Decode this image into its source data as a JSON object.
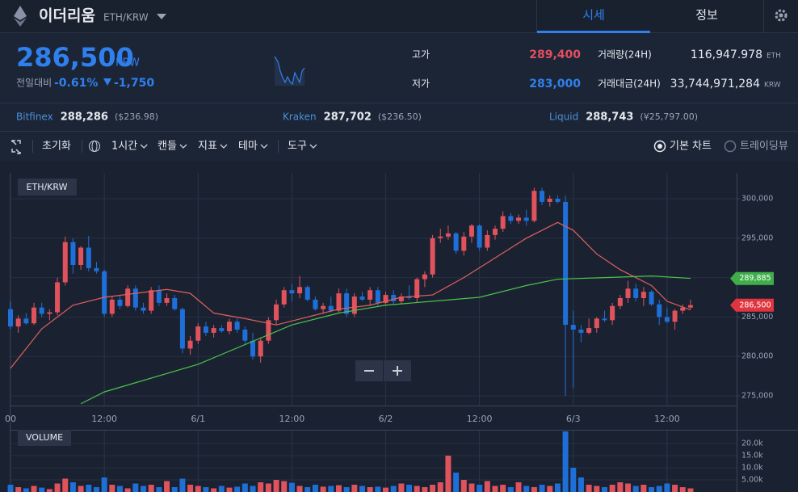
{
  "header": {
    "name": "이더리움",
    "pair": "ETH/KRW",
    "tabs": [
      "시세",
      "정보"
    ]
  },
  "quote": {
    "price": "286,500",
    "currency": "KRW",
    "change_label": "전일대비",
    "change_rate": "-0.61%",
    "change_amount": "-1,750",
    "high_label": "고가",
    "high": "289,400",
    "low_label": "저가",
    "low": "283,000",
    "volume_label": "거래량(24H)",
    "volume": "116,947.978",
    "volume_unit": "ETH",
    "value_label": "거래대금(24H)",
    "value": "33,744,971,284",
    "value_unit": "KRW"
  },
  "exchanges": [
    {
      "name": "Bitfinex",
      "price": "288,286",
      "ref": "($236.98)"
    },
    {
      "name": "Kraken",
      "price": "287,702",
      "ref": "($236.50)"
    },
    {
      "name": "Liquid",
      "price": "288,743",
      "ref": "(¥25,797.00)"
    }
  ],
  "toolbar": {
    "items": [
      "초기화",
      "1시간",
      "캔들",
      "지표",
      "테마",
      "도구"
    ],
    "views": [
      "기본 차트",
      "트레이딩뷰"
    ]
  },
  "chart_data": [
    {
      "type": "candlestick",
      "label": "ETH/KRW",
      "up_color": "#e0535d",
      "down_color": "#1f6fd8",
      "grid": true,
      "x": [
        0,
        1,
        2,
        3,
        4,
        5,
        6,
        7,
        8,
        9,
        10,
        11,
        12,
        13,
        14,
        15,
        16,
        17,
        18,
        19,
        20,
        21,
        22,
        23,
        24,
        25,
        26,
        27,
        28,
        29,
        30,
        31,
        32,
        33,
        34,
        35,
        36,
        37,
        38,
        39,
        40,
        41,
        42,
        43,
        44,
        45,
        46,
        47,
        48,
        49,
        50,
        51,
        52,
        53,
        54,
        55,
        56,
        57,
        58,
        59,
        60,
        61,
        62,
        63,
        64,
        65,
        66,
        67,
        68,
        69,
        70,
        71,
        72,
        73,
        74,
        75,
        76,
        77,
        78,
        79,
        80,
        81,
        82,
        83,
        84,
        85,
        86,
        87
      ],
      "candles": [
        [
          286000,
          287000,
          283500,
          283800
        ],
        [
          283800,
          285200,
          283000,
          284800
        ],
        [
          284800,
          285500,
          284000,
          284200
        ],
        [
          284200,
          286800,
          284000,
          286200
        ],
        [
          286200,
          286800,
          285000,
          285400
        ],
        [
          285400,
          286000,
          284600,
          285600
        ],
        [
          285600,
          290000,
          285200,
          289400
        ],
        [
          289400,
          295200,
          289000,
          294500
        ],
        [
          294500,
          295000,
          290500,
          291600
        ],
        [
          291600,
          294000,
          291000,
          293800
        ],
        [
          293800,
          295300,
          290800,
          291200
        ],
        [
          291200,
          292000,
          290500,
          290800
        ],
        [
          290800,
          291000,
          285000,
          285400
        ],
        [
          285400,
          287600,
          285000,
          287200
        ],
        [
          287200,
          287800,
          286000,
          286400
        ],
        [
          286400,
          289000,
          286200,
          288600
        ],
        [
          288600,
          289000,
          285800,
          286200
        ],
        [
          286200,
          286800,
          285400,
          285800
        ],
        [
          285800,
          288800,
          285400,
          288400
        ],
        [
          288400,
          289000,
          286400,
          286800
        ],
        [
          286800,
          288000,
          286400,
          287400
        ],
        [
          287400,
          287800,
          285800,
          286000
        ],
        [
          286000,
          286200,
          280400,
          281000
        ],
        [
          281000,
          282600,
          280200,
          282000
        ],
        [
          282000,
          284200,
          281600,
          283800
        ],
        [
          283800,
          284400,
          282600,
          283000
        ],
        [
          283000,
          284000,
          282400,
          283600
        ],
        [
          283600,
          284000,
          283000,
          283200
        ],
        [
          283200,
          284800,
          282800,
          284400
        ],
        [
          284400,
          284800,
          283000,
          283400
        ],
        [
          283400,
          283800,
          281600,
          282000
        ],
        [
          282000,
          283000,
          279600,
          280000
        ],
        [
          280000,
          282400,
          279200,
          282000
        ],
        [
          282000,
          285000,
          281600,
          284600
        ],
        [
          284600,
          287200,
          284000,
          286600
        ],
        [
          286600,
          288800,
          286200,
          288400
        ],
        [
          288400,
          289200,
          287000,
          288000
        ],
        [
          288000,
          290200,
          287400,
          288800
        ],
        [
          288800,
          289000,
          287000,
          287200
        ],
        [
          287200,
          287600,
          285800,
          286000
        ],
        [
          286000,
          286800,
          285400,
          286400
        ],
        [
          286400,
          287600,
          285600,
          285800
        ],
        [
          285800,
          288600,
          285600,
          288000
        ],
        [
          288000,
          288600,
          285000,
          285400
        ],
        [
          285400,
          288000,
          285000,
          287600
        ],
        [
          287600,
          288200,
          287000,
          287200
        ],
        [
          287200,
          288800,
          286400,
          288400
        ],
        [
          288400,
          288800,
          286400,
          286800
        ],
        [
          286800,
          288200,
          286600,
          287800
        ],
        [
          287800,
          288400,
          286600,
          287000
        ],
        [
          287000,
          288000,
          286600,
          287600
        ],
        [
          287600,
          289000,
          287200,
          287400
        ],
        [
          287400,
          290000,
          286800,
          289800
        ],
        [
          289800,
          290800,
          288800,
          290400
        ],
        [
          290400,
          295400,
          290000,
          295000
        ],
        [
          295000,
          296200,
          294400,
          295200
        ],
        [
          295200,
          296600,
          294800,
          295600
        ],
        [
          295600,
          295800,
          293000,
          293400
        ],
        [
          293400,
          295800,
          292800,
          295200
        ],
        [
          295200,
          296800,
          294400,
          296600
        ],
        [
          296600,
          296800,
          293400,
          293800
        ],
        [
          293800,
          296000,
          293400,
          295400
        ],
        [
          295400,
          296600,
          294800,
          296200
        ],
        [
          296200,
          298400,
          295800,
          297800
        ],
        [
          297800,
          298200,
          296800,
          297200
        ],
        [
          297200,
          298000,
          296800,
          297600
        ],
        [
          297600,
          298600,
          296600,
          297200
        ],
        [
          297200,
          301400,
          297000,
          301000
        ],
        [
          301000,
          301400,
          299200,
          299600
        ],
        [
          299600,
          300400,
          299000,
          300000
        ],
        [
          300000,
          300400,
          299400,
          299600
        ],
        [
          299600,
          300400,
          275000,
          284000
        ],
        [
          284000,
          285800,
          276000,
          283400
        ],
        [
          283400,
          284000,
          281800,
          283000
        ],
        [
          283000,
          284800,
          282800,
          283600
        ],
        [
          283600,
          285000,
          283000,
          284800
        ],
        [
          284800,
          285800,
          284400,
          284600
        ],
        [
          284600,
          286800,
          284000,
          286400
        ],
        [
          286400,
          287800,
          286000,
          287400
        ],
        [
          287400,
          289600,
          286800,
          288600
        ],
        [
          288600,
          289200,
          287000,
          287400
        ],
        [
          287400,
          288800,
          286400,
          288200
        ],
        [
          288200,
          288400,
          286400,
          286600
        ],
        [
          286600,
          287200,
          284000,
          285000
        ],
        [
          285000,
          286200,
          284200,
          284400
        ],
        [
          284400,
          286000,
          283400,
          285800
        ],
        [
          285800,
          286600,
          285400,
          286200
        ],
        [
          286200,
          287200,
          286000,
          286500
        ]
      ],
      "ma": [
        {
          "color": "#e0605a",
          "x": [
            0,
            4,
            8,
            12,
            16,
            20,
            23,
            26,
            30,
            34,
            38,
            42,
            46,
            50,
            54,
            58,
            62,
            66,
            70,
            72,
            75,
            78,
            82,
            84,
            87
          ],
          "values": [
            278500,
            283500,
            286500,
            287500,
            288000,
            288500,
            288000,
            285500,
            284800,
            284000,
            285000,
            286000,
            286500,
            287500,
            287800,
            290000,
            292500,
            295000,
            297000,
            296000,
            293000,
            291000,
            289000,
            287000,
            285900
          ]
        },
        {
          "color": "#4cc24a",
          "x": [
            9,
            12,
            24,
            36,
            42,
            48,
            54,
            60,
            66,
            70,
            76,
            82,
            87
          ],
          "values": [
            274000,
            275500,
            279000,
            284000,
            285500,
            286500,
            287000,
            287500,
            289000,
            289800,
            290000,
            290200,
            289900
          ]
        }
      ],
      "xlim": [
        0,
        93
      ],
      "xticks": [
        {
          "value": 0,
          "label": "00"
        },
        {
          "value": 12,
          "label": "12:00"
        },
        {
          "value": 24,
          "label": "6/1"
        },
        {
          "value": 36,
          "label": "12:00"
        },
        {
          "value": 48,
          "label": "6/2"
        },
        {
          "value": 60,
          "label": "12:00"
        },
        {
          "value": 72,
          "label": "6/3"
        },
        {
          "value": 84,
          "label": "12:00"
        }
      ],
      "ylim": [
        273770,
        303280
      ],
      "yticks": [
        {
          "value": 275000,
          "label": "275,000"
        },
        {
          "value": 280000,
          "label": "280,000"
        },
        {
          "value": 285000,
          "label": "285,000"
        },
        {
          "value": 290000,
          "label": "290,000"
        },
        {
          "value": 295000,
          "label": "295,000"
        },
        {
          "value": 300000,
          "label": "300,000"
        }
      ],
      "annotations": [
        {
          "value": 289885,
          "label": "289,885",
          "color": "#3fae4a"
        },
        {
          "value": 286500,
          "label": "286,500",
          "color": "#e0353f"
        }
      ]
    },
    {
      "type": "bar",
      "label": "VOLUME",
      "values": [
        3000,
        2000,
        1500,
        2500,
        1800,
        1200,
        3500,
        5500,
        4000,
        2500,
        3000,
        2000,
        6000,
        3000,
        2500,
        1500,
        3500,
        2500,
        3000,
        2000,
        4500,
        2000,
        5500,
        3000,
        2500,
        2000,
        1500,
        2500,
        1800,
        2200,
        3500,
        2500,
        4000,
        3500,
        5000,
        4500,
        3800,
        2500,
        2000,
        3000,
        2200,
        2500,
        2800,
        2000,
        3000,
        2500,
        2000,
        2200,
        1800,
        2500,
        3500,
        3000,
        2500,
        2000,
        3000,
        4000,
        15000,
        8000,
        5000,
        3500,
        3000,
        4500,
        2500,
        3000,
        2000,
        4000,
        2500,
        2000,
        3000,
        2500,
        3500,
        25000,
        10000,
        6000,
        3000,
        2500,
        2000,
        3000,
        4000,
        3500,
        2500,
        3000,
        2000,
        2500,
        3500,
        3000,
        2000,
        1500
      ],
      "ylim": [
        0,
        25000
      ],
      "yticks": [
        {
          "value": 5000,
          "label": "5.00k"
        },
        {
          "value": 10000,
          "label": "10.0k"
        },
        {
          "value": 15000,
          "label": "15.0k"
        },
        {
          "value": 20000,
          "label": "20.0k"
        }
      ]
    }
  ]
}
